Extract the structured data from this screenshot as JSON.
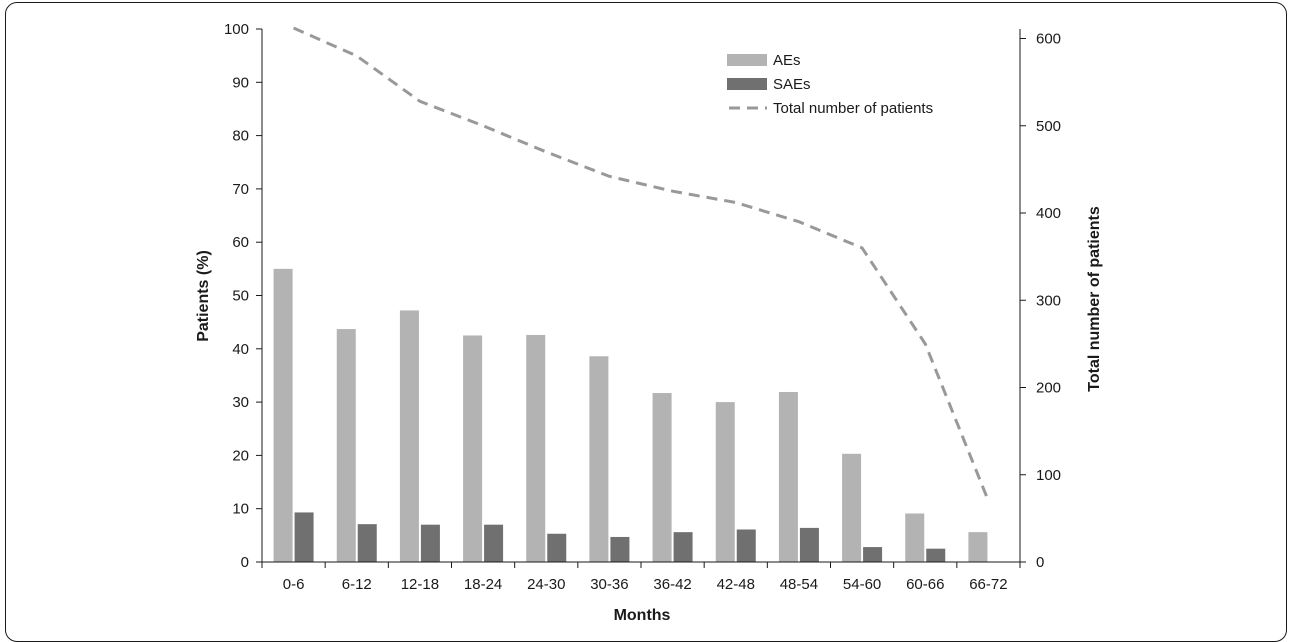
{
  "chart_data": {
    "type": "bar",
    "categories": [
      "0-6",
      "6-12",
      "12-18",
      "18-24",
      "24-30",
      "30-36",
      "36-42",
      "42-48",
      "48-54",
      "54-60",
      "60-66",
      "66-72"
    ],
    "series": [
      {
        "name": "AEs",
        "type": "bar",
        "axis": "left",
        "color": "#b3b3b3",
        "values": [
          55.0,
          43.7,
          47.2,
          42.5,
          42.6,
          38.6,
          31.7,
          30.0,
          31.9,
          20.3,
          9.1,
          5.6
        ]
      },
      {
        "name": "SAEs",
        "type": "bar",
        "axis": "left",
        "color": "#707070",
        "values": [
          9.3,
          7.1,
          7.0,
          7.0,
          5.3,
          4.7,
          5.6,
          6.1,
          6.4,
          2.8,
          2.5,
          0
        ]
      },
      {
        "name": "Total number of patients",
        "type": "line",
        "style": "dashed",
        "axis": "right",
        "color": "#999999",
        "values": [
          612,
          580,
          528,
          500,
          470,
          442,
          425,
          412,
          390,
          360,
          250,
          70
        ]
      }
    ],
    "xlabel": "Months",
    "ylabel": "Patients (%)",
    "y2label": "Total number of patients",
    "ylim": [
      0,
      100
    ],
    "y2lim": [
      0,
      610
    ],
    "yticks": [
      0,
      10,
      20,
      30,
      40,
      50,
      60,
      70,
      80,
      90,
      100
    ],
    "y2ticks": [
      0,
      100,
      200,
      300,
      400,
      500,
      600
    ],
    "grid": false,
    "legend_position": "top-right"
  }
}
